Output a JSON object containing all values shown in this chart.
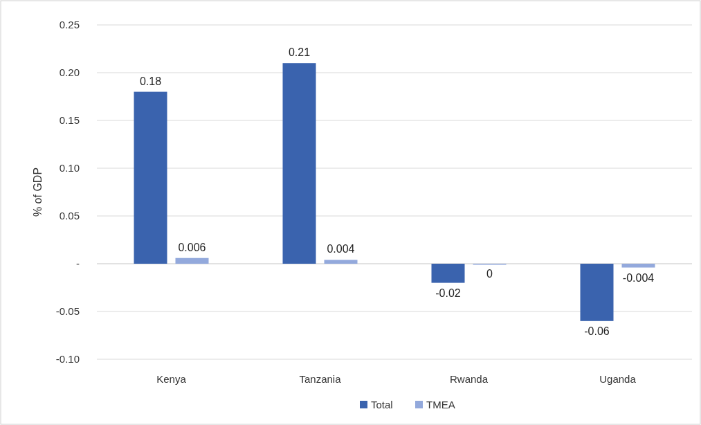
{
  "chart_data": {
    "type": "bar",
    "ylabel": "% of GDP",
    "categories": [
      "Kenya",
      "Tanzania",
      "Rwanda",
      "Uganda"
    ],
    "series": [
      {
        "name": "Total",
        "color": "#3a63ae",
        "values": [
          0.18,
          0.21,
          -0.02,
          -0.06
        ]
      },
      {
        "name": "TMEA",
        "color": "#93a9dc",
        "values": [
          0.006,
          0.004,
          0,
          -0.004
        ]
      }
    ],
    "ylim": [
      -0.1,
      0.25
    ],
    "yticks": [
      {
        "value": -0.1,
        "label": "-0.10"
      },
      {
        "value": -0.05,
        "label": "-0.05"
      },
      {
        "value": 0,
        "label": "-"
      },
      {
        "value": 0.05,
        "label": "0.05"
      },
      {
        "value": 0.1,
        "label": "0.10"
      },
      {
        "value": 0.15,
        "label": "0.15"
      },
      {
        "value": 0.2,
        "label": "0.20"
      },
      {
        "value": 0.25,
        "label": "0.25"
      }
    ],
    "grid": "y",
    "legend": "bottom",
    "data_labels": true
  }
}
